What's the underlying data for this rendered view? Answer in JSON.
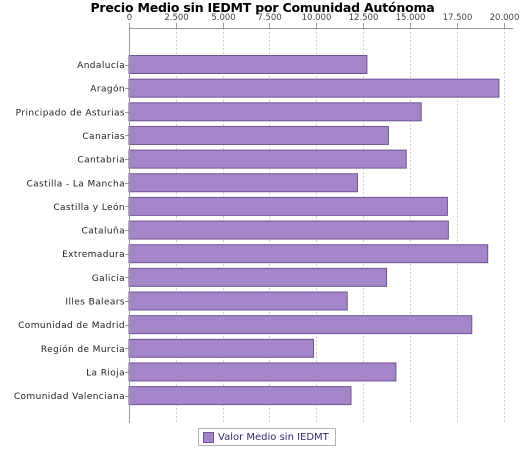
{
  "chart_data": {
    "type": "bar",
    "orientation": "horizontal",
    "title": "Precio Medio sin IEDMT por Comunidad Autónoma",
    "xlabel": "",
    "ylabel": "",
    "xlim": [
      0,
      20500
    ],
    "x_ticks": [
      0,
      2500,
      5000,
      7500,
      10000,
      12500,
      15000,
      17500,
      20000
    ],
    "x_tick_labels": [
      "0",
      "2.500",
      "5.000",
      "7.500",
      "10.000",
      "12.500",
      "15.000",
      "17.500",
      "20.000"
    ],
    "x_axis_position": "top",
    "grid": "vertical dashed",
    "categories": [
      "Andalucía",
      "Aragón",
      "Principado de Asturias",
      "Canarias",
      "Cantabria",
      "Castilla - La Mancha",
      "Castilla y León",
      "Cataluña",
      "Extremadura",
      "Galicia",
      "Illes Balears",
      "Comunidad de Madrid",
      "Región de Murcia",
      "La Rioja",
      "Comunidad Valenciana"
    ],
    "series": [
      {
        "name": "Valor Medio sin IEDMT",
        "color": "#a385c8",
        "values": [
          12700,
          19750,
          15600,
          13850,
          14800,
          12200,
          17000,
          17050,
          19150,
          13750,
          11650,
          18300,
          9850,
          14250,
          11850
        ]
      }
    ],
    "legend_position": "bottom-center"
  }
}
